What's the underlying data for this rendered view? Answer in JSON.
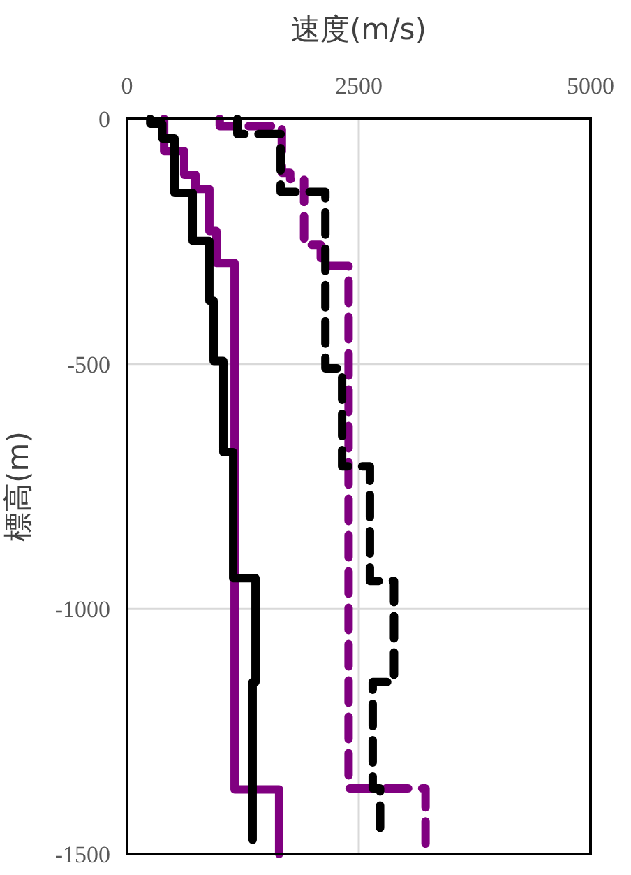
{
  "chart_data": {
    "type": "line",
    "xlabel": "速度(m/s)",
    "ylabel": "標高(m)",
    "xlim": [
      0,
      5000
    ],
    "xticks": [
      0,
      2500,
      5000
    ],
    "ylim": [
      -1500,
      0
    ],
    "yticks": [
      0,
      -500,
      -1000,
      -1500
    ],
    "grid": true,
    "series": [
      {
        "color": "#800080",
        "line_style": "solid",
        "x": [
          400,
          400,
          617,
          617,
          738,
          738,
          888,
          888,
          964,
          964,
          1160,
          1160,
          1641,
          1641
        ],
        "values": [
          0,
          -66,
          -66,
          -114,
          -114,
          -143,
          -143,
          -229,
          -229,
          -294,
          -294,
          -1368,
          -1368,
          -1500
        ]
      },
      {
        "color": "#000000",
        "line_style": "solid",
        "x": [
          250,
          250,
          380,
          380,
          512,
          512,
          708,
          708,
          888,
          888,
          934,
          934,
          1039,
          1039,
          1145,
          1145,
          1386,
          1386,
          1355,
          1355
        ],
        "values": [
          0,
          -10,
          -10,
          -40,
          -40,
          -151,
          -151,
          -249,
          -249,
          -371,
          -371,
          -494,
          -494,
          -680,
          -680,
          -937,
          -937,
          -1149,
          -1149,
          -1471
        ]
      },
      {
        "color": "#800080",
        "line_style": "dashed",
        "x": [
          1000,
          1000,
          1670,
          1670,
          1760,
          1760,
          1910,
          1910,
          2090,
          2090,
          2390,
          2390,
          3220,
          3220
        ],
        "values": [
          0,
          -15,
          -15,
          -110,
          -110,
          -123,
          -123,
          -257,
          -257,
          -300,
          -300,
          -1366,
          -1366,
          -1500
        ]
      },
      {
        "color": "#000000",
        "line_style": "dashed",
        "x": [
          1190,
          1190,
          1657,
          1657,
          2140,
          2140,
          2320,
          2320,
          2620,
          2620,
          2880,
          2880,
          2650,
          2650,
          2730,
          2730
        ],
        "values": [
          0,
          -31,
          -31,
          -149,
          -149,
          -509,
          -509,
          -709,
          -709,
          -943,
          -943,
          -1149,
          -1149,
          -1366,
          -1366,
          -1471
        ]
      }
    ]
  }
}
